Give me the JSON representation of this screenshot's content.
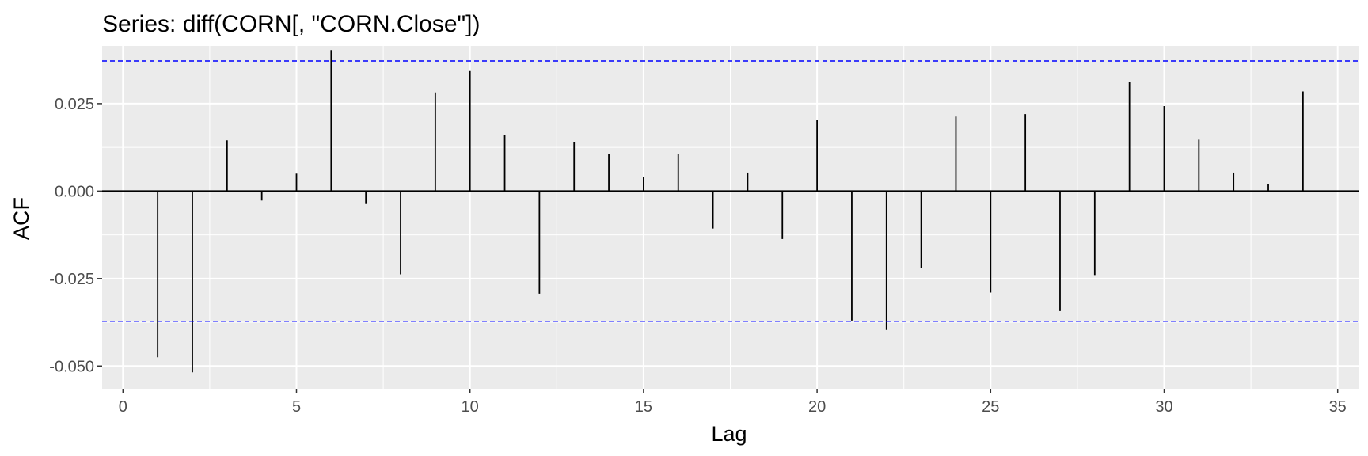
{
  "chart_data": {
    "type": "bar",
    "title": "Series: diff(CORN[, \"CORN.Close\"])",
    "xlabel": "Lag",
    "ylabel": "ACF",
    "xlim": [
      -0.6,
      35.6
    ],
    "ylim": [
      -0.0565,
      0.0415
    ],
    "x_ticks": [
      0,
      5,
      10,
      15,
      20,
      25,
      30,
      35
    ],
    "x_tick_labels": [
      "0",
      "5",
      "10",
      "15",
      "20",
      "25",
      "30",
      "35"
    ],
    "y_ticks": [
      -0.05,
      -0.025,
      0.0,
      0.025
    ],
    "y_tick_labels": [
      "-0.050",
      "-0.025",
      "0.000",
      "0.025"
    ],
    "grid": true,
    "background": "#ebebeb",
    "bar_color": "#000000",
    "confidence_color": "#0000ff",
    "confidence_bounds": [
      0.0372,
      -0.0372
    ],
    "lags": [
      1,
      2,
      3,
      4,
      5,
      6,
      7,
      8,
      9,
      10,
      11,
      12,
      13,
      14,
      15,
      16,
      17,
      18,
      19,
      20,
      21,
      22,
      23,
      24,
      25,
      26,
      27,
      28,
      29,
      30,
      31,
      32,
      33,
      34
    ],
    "values": [
      -0.0475,
      -0.0518,
      0.0145,
      -0.0027,
      0.005,
      0.0403,
      -0.0037,
      -0.0238,
      0.0282,
      0.0343,
      0.016,
      -0.0293,
      0.014,
      0.0107,
      0.004,
      0.0107,
      -0.0107,
      0.0053,
      -0.0137,
      0.0203,
      -0.037,
      -0.0397,
      -0.022,
      0.0213,
      -0.029,
      0.022,
      -0.0343,
      -0.024,
      0.0312,
      0.0243,
      0.0147,
      0.0053,
      0.002,
      0.0285
    ]
  }
}
